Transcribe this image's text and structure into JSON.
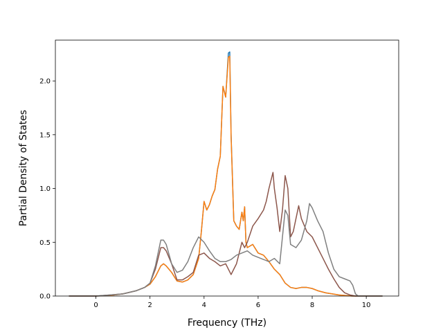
{
  "chart_data": {
    "type": "line",
    "title": "",
    "xlabel": "Frequency (THz)",
    "ylabel": "Partial Density of States",
    "xlim": [
      -1.5,
      11.2
    ],
    "ylim": [
      0,
      2.38
    ],
    "xticks": [
      0,
      2,
      4,
      6,
      8,
      10
    ],
    "xtick_labels": [
      "0",
      "2",
      "4",
      "6",
      "8",
      "10"
    ],
    "yticks": [
      0.0,
      0.5,
      1.0,
      1.5,
      2.0
    ],
    "ytick_labels": [
      "0.0",
      "0.5",
      "1.0",
      "1.5",
      "2.0"
    ],
    "grid": false,
    "legend": "none",
    "series": [
      {
        "color": "#1f77b4",
        "points": [
          [
            -1.0,
            0
          ],
          [
            -0.5,
            0
          ],
          [
            0,
            0
          ],
          [
            0.5,
            0.005
          ],
          [
            1.0,
            0.02
          ],
          [
            1.5,
            0.05
          ],
          [
            1.8,
            0.08
          ],
          [
            2.0,
            0.11
          ],
          [
            2.2,
            0.18
          ],
          [
            2.4,
            0.28
          ],
          [
            2.5,
            0.3
          ],
          [
            2.6,
            0.28
          ],
          [
            2.8,
            0.22
          ],
          [
            3.0,
            0.14
          ],
          [
            3.2,
            0.13
          ],
          [
            3.4,
            0.15
          ],
          [
            3.6,
            0.2
          ],
          [
            3.8,
            0.35
          ],
          [
            3.9,
            0.6
          ],
          [
            4.0,
            0.88
          ],
          [
            4.1,
            0.8
          ],
          [
            4.2,
            0.85
          ],
          [
            4.3,
            0.93
          ],
          [
            4.4,
            0.99
          ],
          [
            4.5,
            1.18
          ],
          [
            4.6,
            1.3
          ],
          [
            4.7,
            1.95
          ],
          [
            4.8,
            1.85
          ],
          [
            4.9,
            2.26
          ],
          [
            4.95,
            2.27
          ],
          [
            5.0,
            1.5
          ],
          [
            5.1,
            0.7
          ],
          [
            5.2,
            0.65
          ],
          [
            5.3,
            0.62
          ],
          [
            5.4,
            0.78
          ],
          [
            5.45,
            0.7
          ],
          [
            5.5,
            0.83
          ],
          [
            5.55,
            0.5
          ],
          [
            5.6,
            0.45
          ],
          [
            5.8,
            0.48
          ],
          [
            6.0,
            0.4
          ],
          [
            6.2,
            0.38
          ],
          [
            6.4,
            0.32
          ],
          [
            6.6,
            0.25
          ],
          [
            6.8,
            0.2
          ],
          [
            7.0,
            0.12
          ],
          [
            7.2,
            0.08
          ],
          [
            7.4,
            0.07
          ],
          [
            7.6,
            0.08
          ],
          [
            7.8,
            0.08
          ],
          [
            8.0,
            0.07
          ],
          [
            8.2,
            0.05
          ],
          [
            8.5,
            0.03
          ],
          [
            9.0,
            0.01
          ],
          [
            9.5,
            0
          ],
          [
            10.0,
            0
          ],
          [
            10.6,
            0
          ]
        ]
      },
      {
        "color": "#ff7f0e",
        "points": [
          [
            -1.0,
            0
          ],
          [
            -0.5,
            0
          ],
          [
            0,
            0
          ],
          [
            0.5,
            0.005
          ],
          [
            1.0,
            0.02
          ],
          [
            1.5,
            0.05
          ],
          [
            1.8,
            0.08
          ],
          [
            2.0,
            0.11
          ],
          [
            2.2,
            0.18
          ],
          [
            2.4,
            0.28
          ],
          [
            2.5,
            0.3
          ],
          [
            2.6,
            0.28
          ],
          [
            2.8,
            0.22
          ],
          [
            3.0,
            0.14
          ],
          [
            3.2,
            0.13
          ],
          [
            3.4,
            0.15
          ],
          [
            3.6,
            0.2
          ],
          [
            3.8,
            0.35
          ],
          [
            3.9,
            0.6
          ],
          [
            4.0,
            0.88
          ],
          [
            4.1,
            0.8
          ],
          [
            4.2,
            0.85
          ],
          [
            4.3,
            0.93
          ],
          [
            4.4,
            0.99
          ],
          [
            4.5,
            1.18
          ],
          [
            4.6,
            1.3
          ],
          [
            4.7,
            1.95
          ],
          [
            4.8,
            1.85
          ],
          [
            4.9,
            2.22
          ],
          [
            4.95,
            2.23
          ],
          [
            5.0,
            1.48
          ],
          [
            5.1,
            0.7
          ],
          [
            5.2,
            0.65
          ],
          [
            5.3,
            0.62
          ],
          [
            5.4,
            0.78
          ],
          [
            5.45,
            0.7
          ],
          [
            5.5,
            0.83
          ],
          [
            5.55,
            0.5
          ],
          [
            5.6,
            0.45
          ],
          [
            5.8,
            0.48
          ],
          [
            6.0,
            0.4
          ],
          [
            6.2,
            0.38
          ],
          [
            6.4,
            0.32
          ],
          [
            6.6,
            0.25
          ],
          [
            6.8,
            0.2
          ],
          [
            7.0,
            0.12
          ],
          [
            7.2,
            0.08
          ],
          [
            7.4,
            0.07
          ],
          [
            7.6,
            0.08
          ],
          [
            7.8,
            0.08
          ],
          [
            8.0,
            0.07
          ],
          [
            8.2,
            0.05
          ],
          [
            8.5,
            0.03
          ],
          [
            9.0,
            0.01
          ],
          [
            9.5,
            0
          ],
          [
            10.0,
            0
          ],
          [
            10.6,
            0
          ]
        ]
      },
      {
        "color": "#8c564b",
        "points": [
          [
            -1.0,
            0
          ],
          [
            -0.5,
            0
          ],
          [
            0,
            0
          ],
          [
            0.5,
            0.01
          ],
          [
            1.0,
            0.02
          ],
          [
            1.5,
            0.05
          ],
          [
            1.8,
            0.08
          ],
          [
            2.0,
            0.12
          ],
          [
            2.2,
            0.25
          ],
          [
            2.4,
            0.45
          ],
          [
            2.5,
            0.45
          ],
          [
            2.6,
            0.42
          ],
          [
            2.8,
            0.3
          ],
          [
            3.0,
            0.15
          ],
          [
            3.2,
            0.15
          ],
          [
            3.4,
            0.18
          ],
          [
            3.6,
            0.22
          ],
          [
            3.8,
            0.38
          ],
          [
            4.0,
            0.4
          ],
          [
            4.2,
            0.35
          ],
          [
            4.4,
            0.32
          ],
          [
            4.6,
            0.28
          ],
          [
            4.8,
            0.3
          ],
          [
            5.0,
            0.2
          ],
          [
            5.1,
            0.25
          ],
          [
            5.2,
            0.3
          ],
          [
            5.4,
            0.5
          ],
          [
            5.5,
            0.45
          ],
          [
            5.6,
            0.5
          ],
          [
            5.8,
            0.65
          ],
          [
            6.0,
            0.72
          ],
          [
            6.2,
            0.8
          ],
          [
            6.3,
            0.88
          ],
          [
            6.4,
            1.0
          ],
          [
            6.5,
            1.1
          ],
          [
            6.55,
            1.15
          ],
          [
            6.6,
            1.0
          ],
          [
            6.7,
            0.82
          ],
          [
            6.8,
            0.6
          ],
          [
            6.9,
            0.8
          ],
          [
            7.0,
            1.12
          ],
          [
            7.1,
            1.0
          ],
          [
            7.2,
            0.55
          ],
          [
            7.3,
            0.6
          ],
          [
            7.4,
            0.72
          ],
          [
            7.5,
            0.84
          ],
          [
            7.6,
            0.72
          ],
          [
            7.8,
            0.6
          ],
          [
            8.0,
            0.55
          ],
          [
            8.2,
            0.45
          ],
          [
            8.4,
            0.35
          ],
          [
            8.6,
            0.25
          ],
          [
            8.8,
            0.16
          ],
          [
            9.0,
            0.08
          ],
          [
            9.2,
            0.03
          ],
          [
            9.4,
            0.01
          ],
          [
            9.6,
            0
          ],
          [
            10.0,
            0
          ],
          [
            10.6,
            0
          ]
        ]
      },
      {
        "color": "#7f7f7f",
        "points": [
          [
            -1.0,
            0
          ],
          [
            -0.5,
            0
          ],
          [
            0,
            0
          ],
          [
            0.5,
            0.01
          ],
          [
            1.0,
            0.02
          ],
          [
            1.5,
            0.05
          ],
          [
            1.8,
            0.08
          ],
          [
            2.0,
            0.12
          ],
          [
            2.2,
            0.28
          ],
          [
            2.4,
            0.52
          ],
          [
            2.5,
            0.52
          ],
          [
            2.6,
            0.48
          ],
          [
            2.8,
            0.3
          ],
          [
            3.0,
            0.22
          ],
          [
            3.2,
            0.24
          ],
          [
            3.4,
            0.32
          ],
          [
            3.6,
            0.45
          ],
          [
            3.8,
            0.55
          ],
          [
            4.0,
            0.5
          ],
          [
            4.2,
            0.42
          ],
          [
            4.4,
            0.35
          ],
          [
            4.6,
            0.32
          ],
          [
            4.8,
            0.32
          ],
          [
            5.0,
            0.34
          ],
          [
            5.2,
            0.38
          ],
          [
            5.4,
            0.4
          ],
          [
            5.6,
            0.42
          ],
          [
            5.8,
            0.38
          ],
          [
            6.0,
            0.36
          ],
          [
            6.2,
            0.34
          ],
          [
            6.4,
            0.32
          ],
          [
            6.6,
            0.35
          ],
          [
            6.8,
            0.3
          ],
          [
            7.0,
            0.8
          ],
          [
            7.1,
            0.75
          ],
          [
            7.2,
            0.48
          ],
          [
            7.4,
            0.45
          ],
          [
            7.6,
            0.52
          ],
          [
            7.8,
            0.7
          ],
          [
            7.9,
            0.86
          ],
          [
            8.0,
            0.82
          ],
          [
            8.2,
            0.7
          ],
          [
            8.4,
            0.6
          ],
          [
            8.6,
            0.4
          ],
          [
            8.8,
            0.25
          ],
          [
            9.0,
            0.18
          ],
          [
            9.2,
            0.16
          ],
          [
            9.4,
            0.14
          ],
          [
            9.5,
            0.1
          ],
          [
            9.6,
            0.02
          ],
          [
            9.7,
            0
          ],
          [
            10.0,
            0
          ],
          [
            10.6,
            0
          ]
        ]
      }
    ]
  }
}
